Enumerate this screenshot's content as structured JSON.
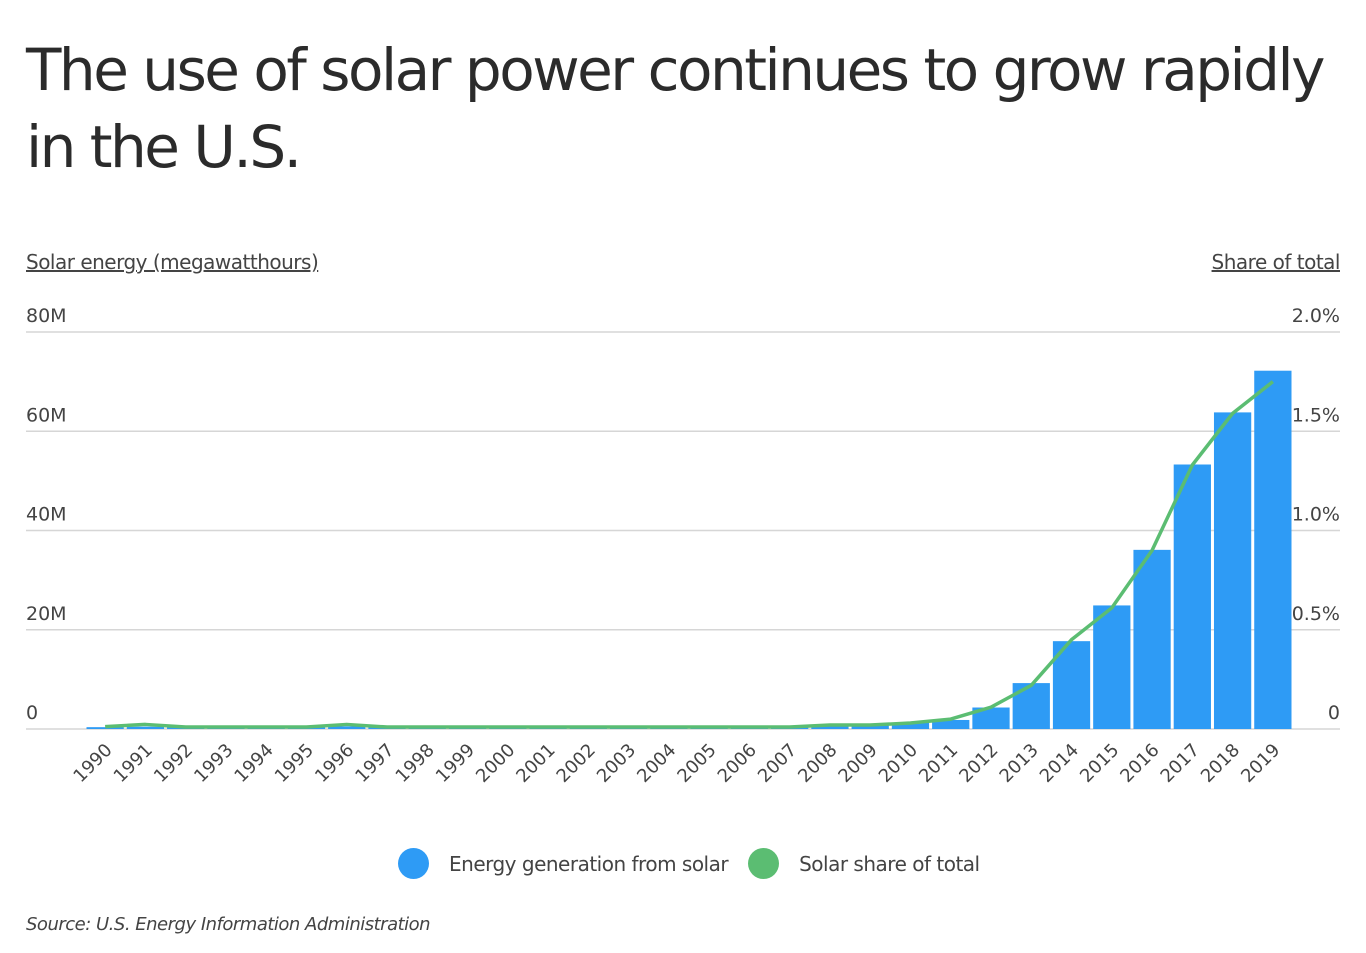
{
  "chart_data": {
    "type": "bar+line",
    "title": "The use of solar power continues to grow rapidly in the U.S.",
    "ylabel": "Solar energy (megawatthours)",
    "y2label": "Share of total",
    "ylim": [
      0,
      80000000
    ],
    "y2lim": [
      0,
      2.0
    ],
    "yticks": [
      "0",
      "20M",
      "40M",
      "60M",
      "80M"
    ],
    "y2ticks": [
      "0",
      "0.5%",
      "1.0%",
      "1.5%",
      "2.0%"
    ],
    "grid": true,
    "legend_position": "bottom",
    "categories": [
      "1990",
      "1991",
      "1992",
      "1993",
      "1994",
      "1995",
      "1996",
      "1997",
      "1998",
      "1999",
      "2000",
      "2001",
      "2002",
      "2003",
      "2004",
      "2005",
      "2006",
      "2007",
      "2008",
      "2009",
      "2010",
      "2011",
      "2012",
      "2013",
      "2014",
      "2015",
      "2016",
      "2017",
      "2018",
      "2019"
    ],
    "series": [
      {
        "name": "Energy generation from solar",
        "type": "bar",
        "color": "#2e9bf5",
        "values": [
          370000,
          460000,
          380000,
          390000,
          360000,
          500000,
          520000,
          510000,
          500000,
          500000,
          490000,
          540000,
          560000,
          530000,
          580000,
          550000,
          510000,
          610000,
          860000,
          890000,
          1210000,
          1820000,
          4330000,
          9250000,
          17700000,
          24900000,
          36100000,
          53300000,
          63800000,
          72200000
        ]
      },
      {
        "name": "Solar share of total",
        "type": "line",
        "color": "#5bbd72",
        "values": [
          0.012,
          0.023,
          0.01,
          0.01,
          0.01,
          0.01,
          0.023,
          0.01,
          0.01,
          0.01,
          0.01,
          0.01,
          0.01,
          0.01,
          0.01,
          0.01,
          0.01,
          0.01,
          0.02,
          0.02,
          0.03,
          0.05,
          0.11,
          0.22,
          0.45,
          0.61,
          0.9,
          1.33,
          1.59,
          1.75
        ]
      }
    ],
    "source": "Source:  U.S. Energy Information Administration"
  }
}
